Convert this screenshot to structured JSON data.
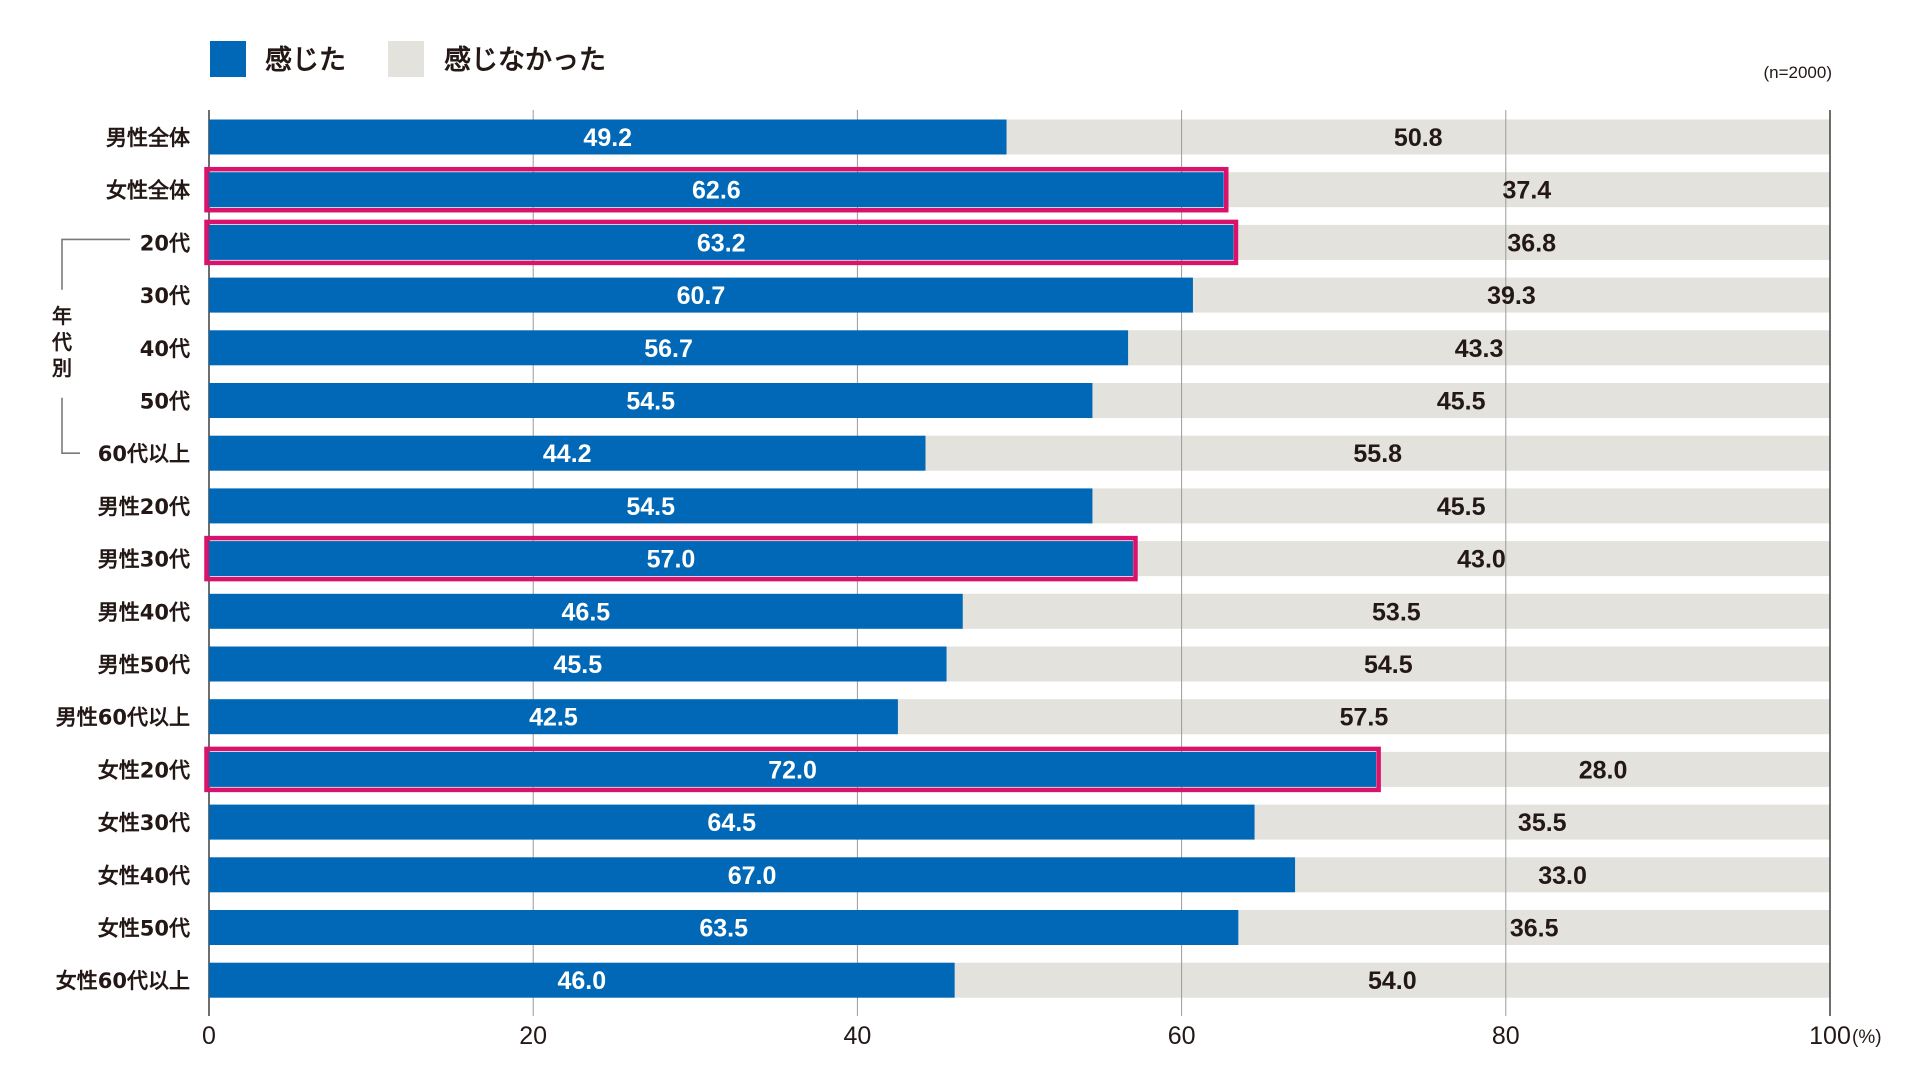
{
  "colors": {
    "felt": "#0068b6",
    "not_felt": "#e3e2dd",
    "highlight": "#d9126b",
    "grid": "#9a9a9a",
    "text": "#231815"
  },
  "legend": {
    "felt": "感じた",
    "not_felt": "感じなかった"
  },
  "sample_note": "(n=2000)",
  "group_bracket": {
    "label_chars": [
      "年",
      "代",
      "別"
    ],
    "from_category": "20代",
    "to_category": "60代以上"
  },
  "chart_data": {
    "type": "bar",
    "orientation": "horizontal",
    "stacked": true,
    "title": "",
    "xlabel": "",
    "ylabel": "",
    "x_unit": "(%)",
    "xlim": [
      0,
      100
    ],
    "x_ticks": [
      0,
      20,
      40,
      60,
      80,
      100
    ],
    "x_tick_labels": [
      "0",
      "20",
      "40",
      "60",
      "80",
      "100"
    ],
    "grid": true,
    "legend_position": "top-left",
    "categories": [
      "男性全体",
      "女性全体",
      "20代",
      "30代",
      "40代",
      "50代",
      "60代以上",
      "男性20代",
      "男性30代",
      "男性40代",
      "男性50代",
      "男性60代以上",
      "女性20代",
      "女性30代",
      "女性40代",
      "女性50代",
      "女性60代以上"
    ],
    "series": [
      {
        "name": "感じた",
        "values": [
          49.2,
          62.6,
          63.2,
          60.7,
          56.7,
          54.5,
          44.2,
          54.5,
          57.0,
          46.5,
          45.5,
          42.5,
          72.0,
          64.5,
          67.0,
          63.5,
          46.0
        ]
      },
      {
        "name": "感じなかった",
        "values": [
          50.8,
          37.4,
          36.8,
          39.3,
          43.3,
          45.5,
          55.8,
          45.5,
          43.0,
          53.5,
          54.5,
          57.5,
          28.0,
          35.5,
          33.0,
          36.5,
          54.0
        ]
      }
    ],
    "highlighted_categories": [
      "女性全体",
      "20代",
      "男性30代",
      "女性20代"
    ],
    "note": "(n=2000)"
  }
}
